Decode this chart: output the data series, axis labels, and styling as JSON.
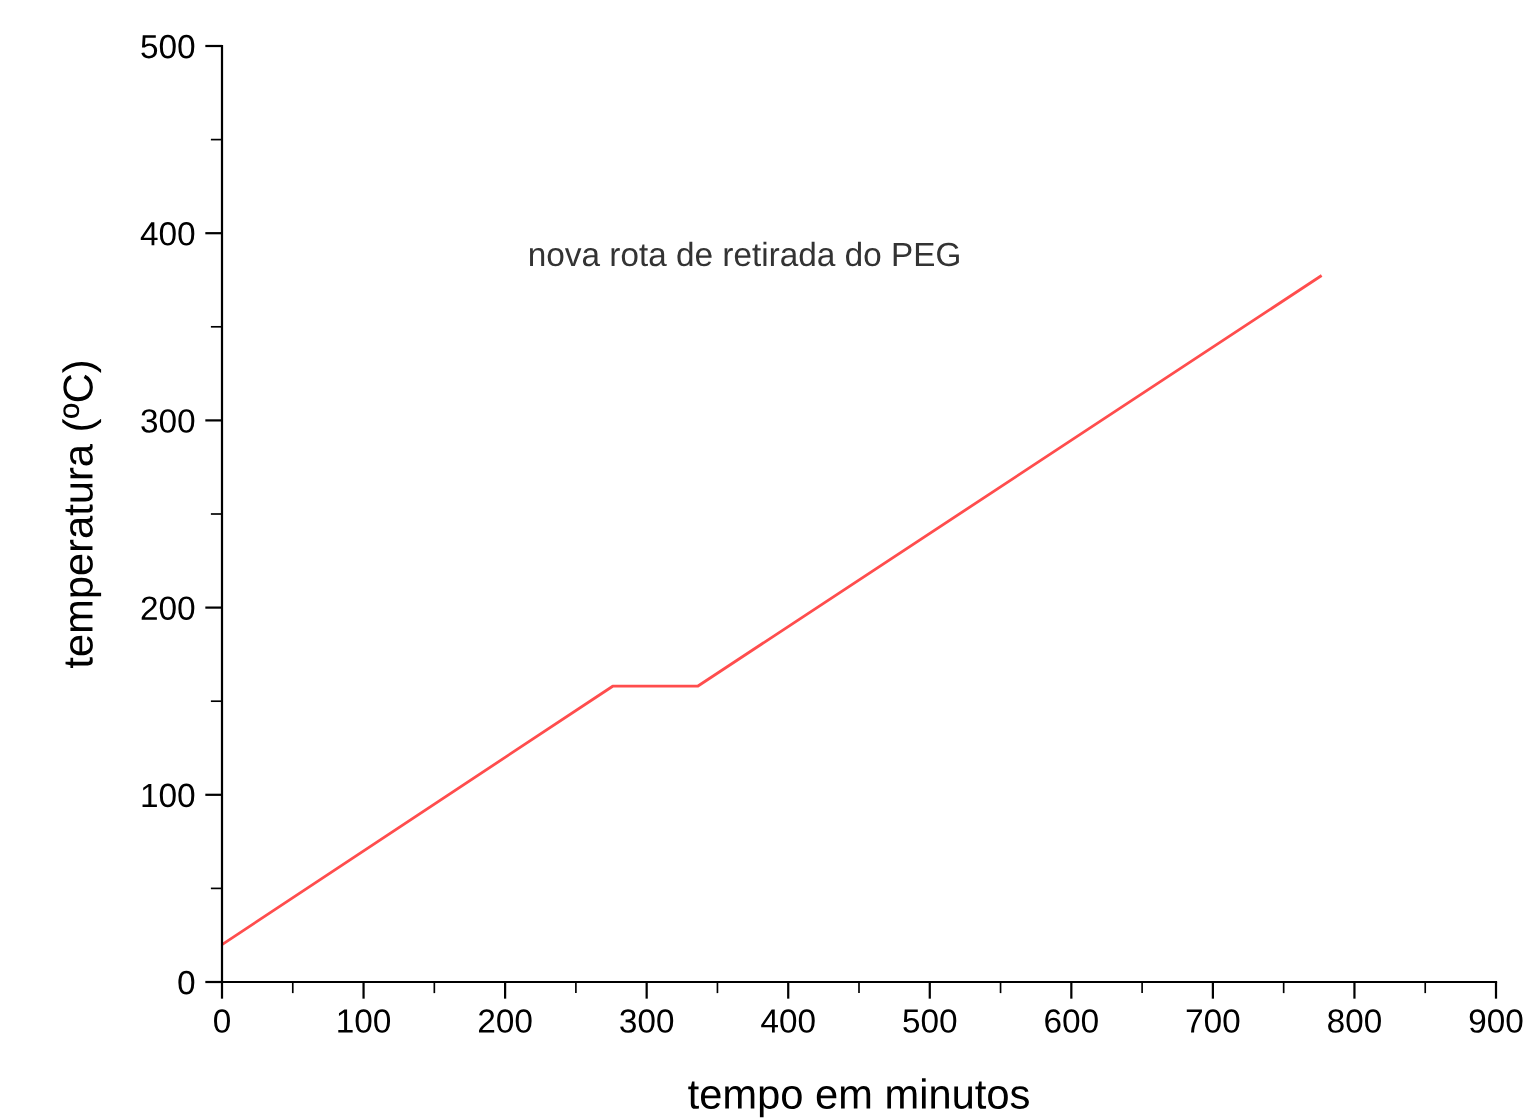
{
  "chart_data": {
    "type": "line",
    "xlabel": "tempo em minutos",
    "ylabel": "temperatura (ºC)",
    "annotations": [
      "nova rota de retirada do PEG"
    ],
    "x": [
      0,
      276,
      336,
      776
    ],
    "series": [
      {
        "color": "#ff4d4d",
        "values": [
          20,
          158,
          158,
          377
        ]
      }
    ],
    "xlim": [
      0,
      900
    ],
    "xticks": [
      0,
      100,
      200,
      300,
      400,
      500,
      600,
      700,
      800,
      900
    ],
    "ylim": [
      0,
      500
    ],
    "yticks": [
      0,
      100,
      200,
      300,
      400,
      500
    ],
    "grid": false,
    "marker": "none",
    "line_style": "solid"
  }
}
